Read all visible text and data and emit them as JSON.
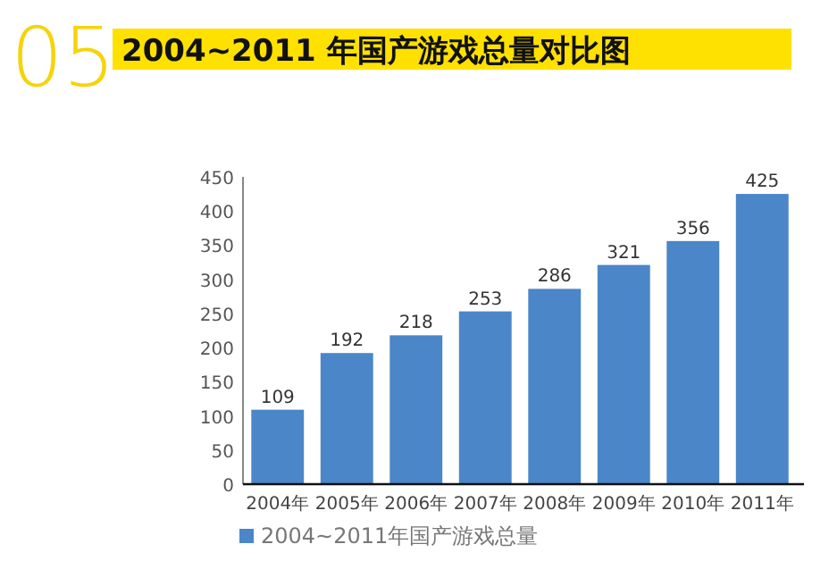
{
  "chart_data": {
    "type": "bar",
    "title": "2004~2011 年国产游戏总量对比图",
    "annotations": [
      "05"
    ],
    "categories": [
      "2004年",
      "2005年",
      "2006年",
      "2007年",
      "2008年",
      "2009年",
      "2010年",
      "2011年"
    ],
    "series": [
      {
        "name": "2004~2011年国产游戏总量",
        "color": "#4a86c8",
        "values": [
          109,
          192,
          218,
          253,
          286,
          321,
          356,
          425
        ]
      }
    ],
    "ylim": [
      0,
      450
    ],
    "yticks": [
      0,
      50,
      100,
      150,
      200,
      250,
      300,
      350,
      400,
      450
    ],
    "data_labels": true,
    "legend": "bottom"
  }
}
